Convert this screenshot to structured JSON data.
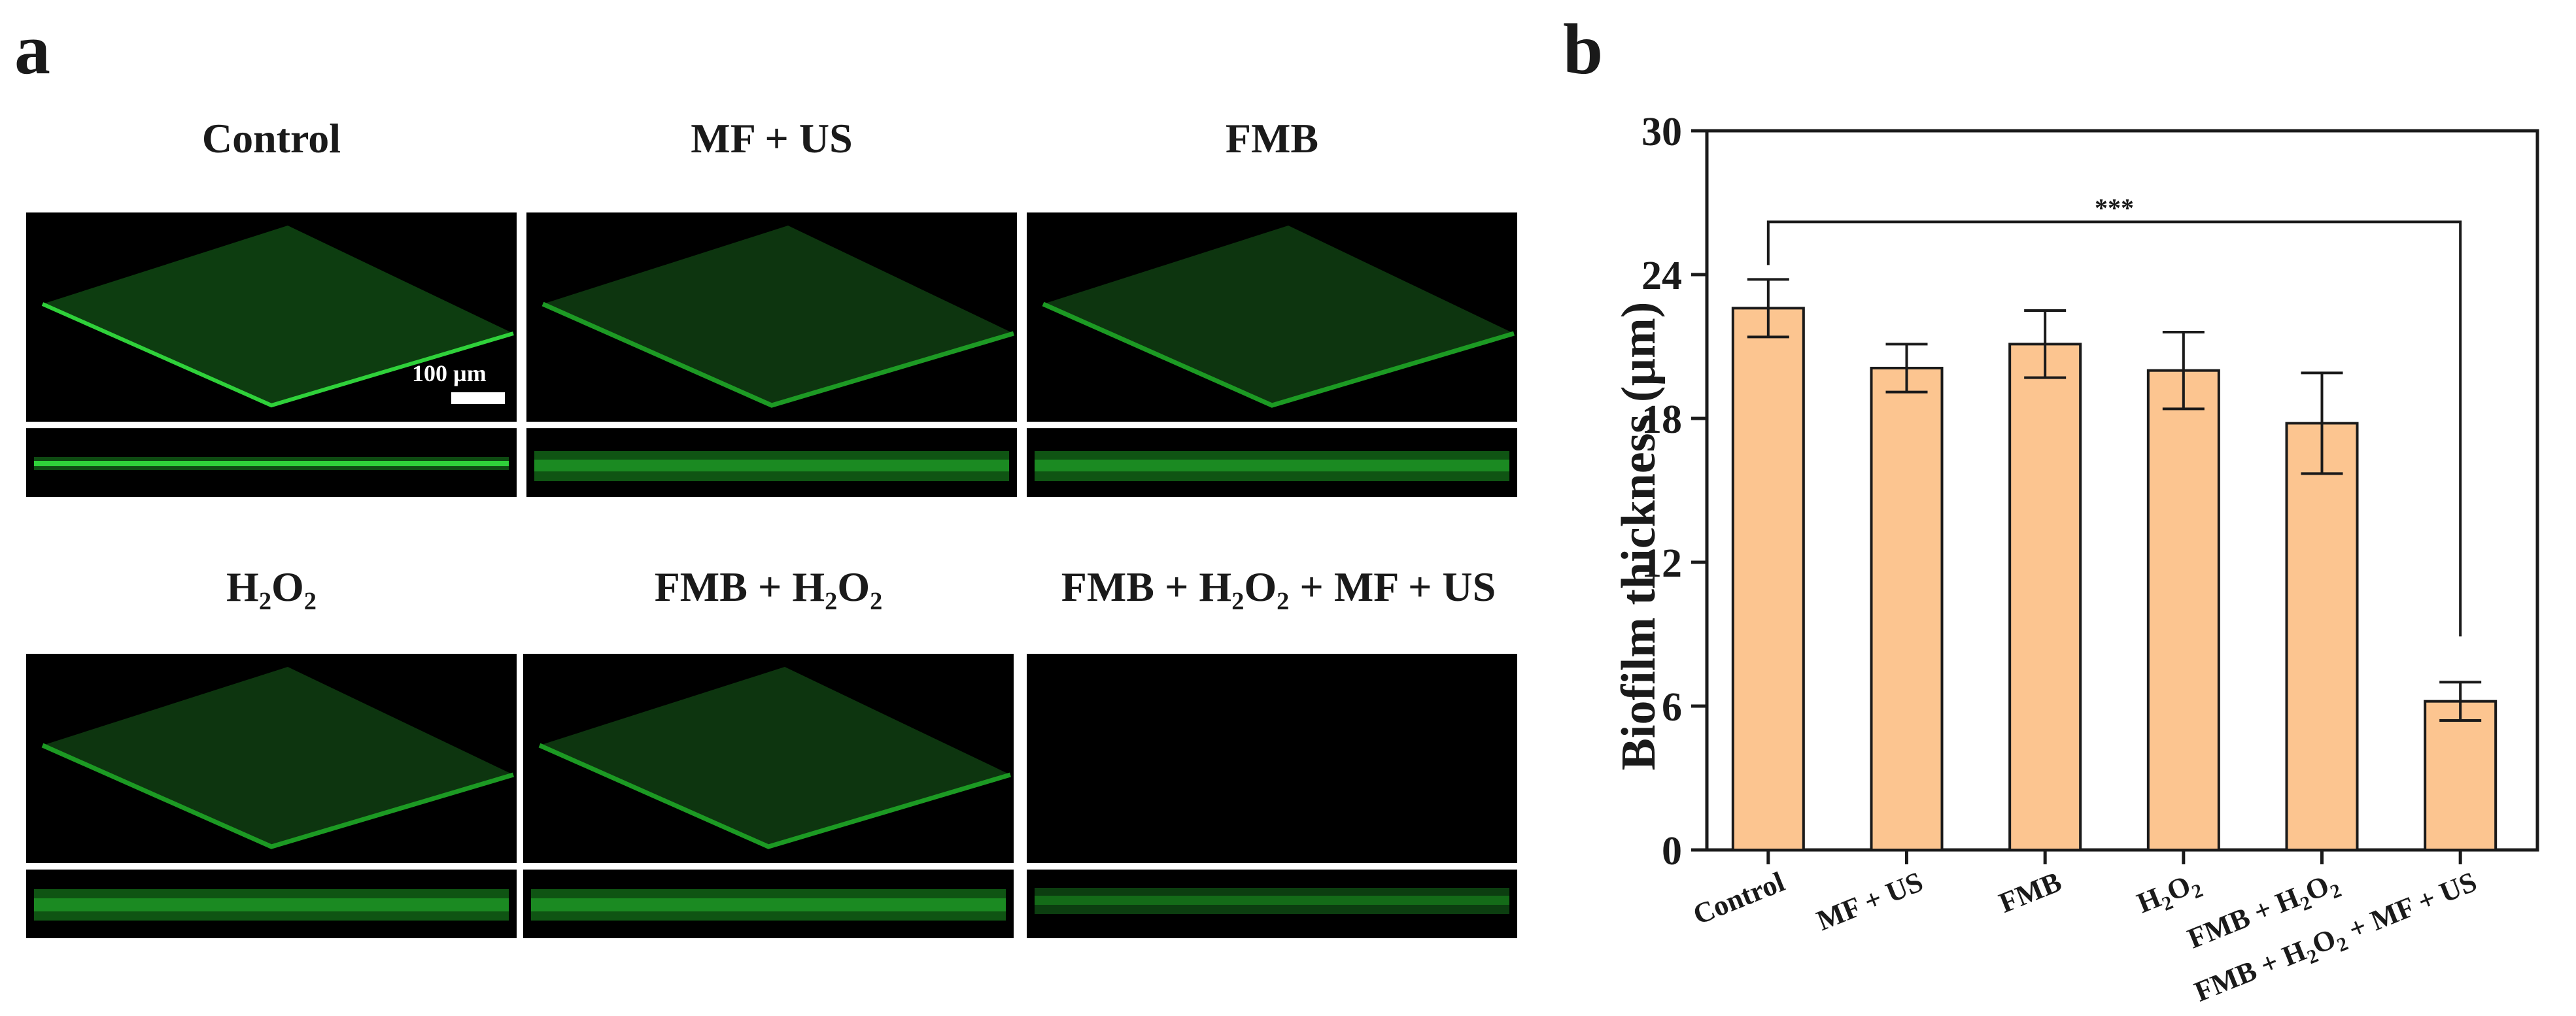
{
  "panel_a": {
    "letter": "a",
    "titles": [
      {
        "main": "Control",
        "sub_parts": []
      },
      {
        "main": "MF + US",
        "sub_parts": []
      },
      {
        "main": "FMB",
        "sub_parts": []
      },
      {
        "main": "H₂O₂",
        "sub_parts": []
      },
      {
        "main": "FMB + H₂O₂",
        "sub_parts": []
      },
      {
        "main": "FMB + H₂O₂ + MF + US",
        "sub_parts": []
      }
    ],
    "scale_bar_label": "100 µm",
    "colors": {
      "biofilm": "#1fbf2a",
      "background": "#000000"
    }
  },
  "panel_b": {
    "letter": "b",
    "significance": "***"
  },
  "chart_data": {
    "type": "bar",
    "categories": [
      "Control",
      "MF + US",
      "FMB",
      "H2O2",
      "FMB + H2O2",
      "FMB + H2O2 + MF + US"
    ],
    "category_display": [
      {
        "parts": [
          [
            "Control",
            false
          ]
        ]
      },
      {
        "parts": [
          [
            "MF + US",
            false
          ]
        ]
      },
      {
        "parts": [
          [
            "FMB",
            false
          ]
        ]
      },
      {
        "parts": [
          [
            "H",
            false
          ],
          [
            "2",
            true
          ],
          [
            "O",
            false
          ],
          [
            "2",
            true
          ]
        ]
      },
      {
        "parts": [
          [
            "FMB + H",
            false
          ],
          [
            "2",
            true
          ],
          [
            "O",
            false
          ],
          [
            "2",
            true
          ]
        ]
      },
      {
        "parts": [
          [
            "FMB + H",
            false
          ],
          [
            "2",
            true
          ],
          [
            "O",
            false
          ],
          [
            "2",
            true
          ],
          [
            " + MF + US",
            false
          ]
        ]
      }
    ],
    "values": [
      22.6,
      20.1,
      21.1,
      20.0,
      17.8,
      6.2
    ],
    "errors": [
      1.2,
      1.0,
      1.4,
      1.6,
      2.1,
      0.8
    ],
    "ylabel": "Biofilm thickness (µm)",
    "xlabel": "",
    "ylim": [
      0,
      30
    ],
    "yticks": [
      0,
      6,
      12,
      18,
      24,
      30
    ],
    "bar_color": "#fcc590",
    "edge_color": "#1a1a1a",
    "significance_pair": [
      0,
      5
    ],
    "significance_label": "***"
  }
}
